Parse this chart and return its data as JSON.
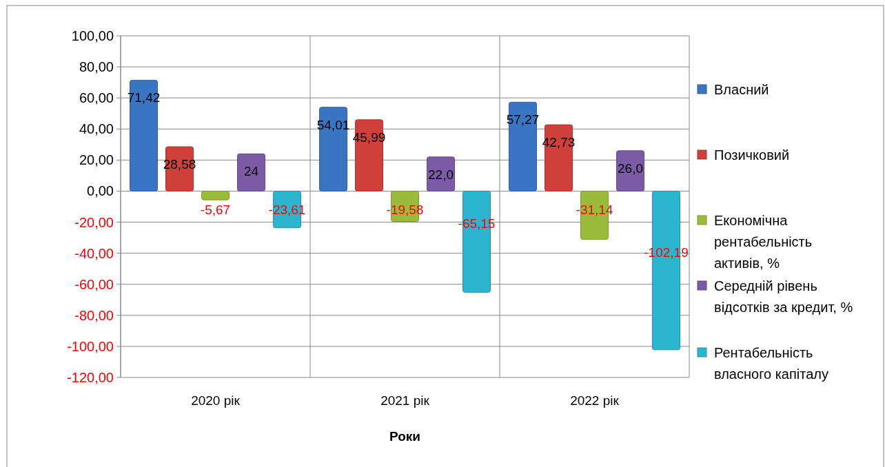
{
  "chart_data": {
    "type": "bar",
    "xlabel": "Роки",
    "categories": [
      "2020 рік",
      "2021 рік",
      "2022 рік"
    ],
    "series": [
      {
        "name": "Власний",
        "color": "#3a75c4",
        "values": [
          71.42,
          54.01,
          57.27
        ],
        "value_labels": [
          "71,42",
          "54,01",
          "57,27"
        ]
      },
      {
        "name": "Позичковий",
        "color": "#d0403a",
        "values": [
          28.58,
          45.99,
          42.73
        ],
        "value_labels": [
          "28,58",
          "45,99",
          "42,73"
        ]
      },
      {
        "name": "Економічна рентабельність активів, %",
        "color": "#9bbb3a",
        "values": [
          -5.67,
          -19.58,
          -31.14
        ],
        "value_labels": [
          "-5,67",
          "-19,58",
          "-31,14"
        ]
      },
      {
        "name": "Середній рівень відсотків за кредит, %",
        "color": "#7b5aa6",
        "values": [
          24,
          22.0,
          26.0
        ],
        "value_labels": [
          "24",
          "22,0",
          "26,0"
        ]
      },
      {
        "name": "Рентабельність власного капіталу",
        "color": "#2cb5cf",
        "values": [
          -23.61,
          -65.15,
          -102.19
        ],
        "value_labels": [
          "-23,61",
          "-65,15",
          "-102,19"
        ]
      }
    ],
    "ylim": [
      -120,
      100
    ],
    "yticks": [
      {
        "value": -120,
        "label": "-120,00"
      },
      {
        "value": -100,
        "label": "-100,00"
      },
      {
        "value": -80,
        "label": "-80,00"
      },
      {
        "value": -60,
        "label": "-60,00"
      },
      {
        "value": -40,
        "label": "-40,00"
      },
      {
        "value": -20,
        "label": "-20,00"
      },
      {
        "value": 0,
        "label": "0,00"
      },
      {
        "value": 20,
        "label": "20,00"
      },
      {
        "value": 40,
        "label": "40,00"
      },
      {
        "value": 60,
        "label": "60,00"
      },
      {
        "value": 80,
        "label": "80,00"
      },
      {
        "value": 100,
        "label": "100,00"
      }
    ],
    "grid": true,
    "legend": "right"
  }
}
